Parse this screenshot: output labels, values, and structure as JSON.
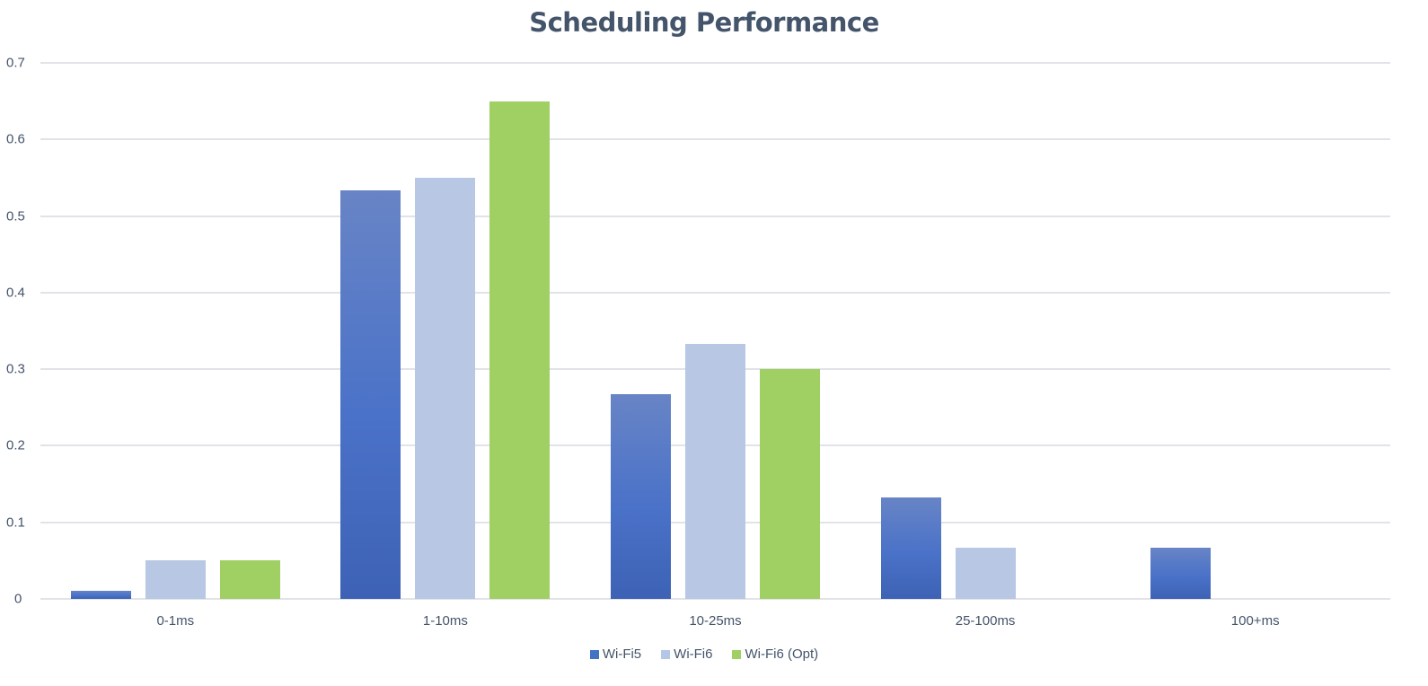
{
  "chart_data": {
    "type": "bar",
    "title": "Scheduling Performance",
    "xlabel": "",
    "ylabel": "",
    "categories": [
      "0-1ms",
      "1-10ms",
      "10-25ms",
      "25-100ms",
      "100+ms"
    ],
    "series": [
      {
        "name": "Wi-Fi5",
        "color": "#4472c4",
        "values": [
          0.01,
          0.533,
          0.267,
          0.133,
          0.067
        ]
      },
      {
        "name": "Wi-Fi6",
        "color": "#b4c7e7",
        "values": [
          0.05,
          0.55,
          0.333,
          0.067,
          0
        ]
      },
      {
        "name": "Wi-Fi6 (Opt)",
        "color": "#a0cf63",
        "values": [
          0.05,
          0.65,
          0.3,
          0,
          0
        ]
      }
    ],
    "ylim": [
      0,
      0.7
    ],
    "yticks": [
      "0",
      "0.1",
      "0.2",
      "0.3",
      "0.4",
      "0.5",
      "0.6",
      "0.7"
    ],
    "grid": true,
    "legend_position": "bottom"
  }
}
